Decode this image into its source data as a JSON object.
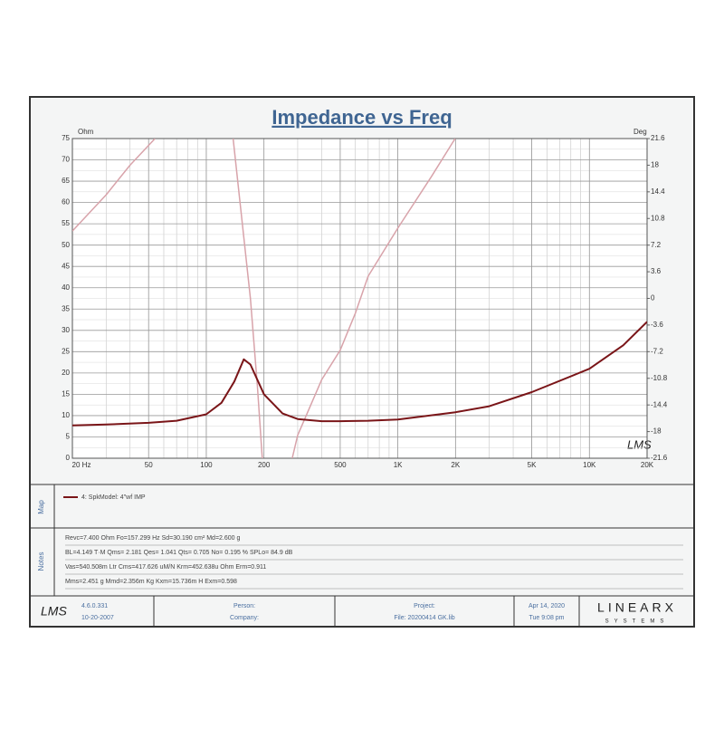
{
  "chart_data": {
    "type": "line",
    "title": "Impedance vs Freq",
    "y_label": "Ohm",
    "y2_label": "Deg",
    "log_x": true,
    "grid": true,
    "xlim": [
      20,
      20000
    ],
    "xticks": [
      {
        "value": 20,
        "label": "20  Hz"
      },
      50,
      100,
      200,
      500,
      {
        "value": 1000,
        "label": "1K"
      },
      {
        "value": 2000,
        "label": "2K"
      },
      {
        "value": 5000,
        "label": "5K"
      },
      {
        "value": 10000,
        "label": "10K"
      },
      {
        "value": 20000,
        "label": "20K"
      }
    ],
    "ylim": [
      0,
      75
    ],
    "yticks": [
      0,
      5,
      10,
      15,
      20,
      25,
      30,
      35,
      40,
      45,
      50,
      55,
      60,
      65,
      70,
      75
    ],
    "y2lim": [
      -21.6,
      21.6
    ],
    "y2ticks": [
      -21.6,
      -18,
      -14.4,
      -10.8,
      -7.2,
      -3.6,
      0,
      3.6,
      7.2,
      10.8,
      14.4,
      18,
      21.6
    ],
    "series": [
      {
        "name": "4: SpkModel: 4\"wf IMP",
        "color": "#7a1518",
        "x": [
          20,
          30,
          50,
          70,
          100,
          120,
          140,
          157,
          170,
          200,
          250,
          300,
          400,
          500,
          700,
          1000,
          2000,
          3000,
          5000,
          10000,
          15000,
          20000
        ],
        "values": [
          7.7,
          7.9,
          8.3,
          8.8,
          10.3,
          13,
          18,
          23.2,
          22,
          15,
          10.5,
          9.2,
          8.7,
          8.7,
          8.8,
          9.1,
          10.8,
          12.2,
          15.5,
          21,
          26.5,
          32
        ]
      },
      {
        "axis": "y2",
        "color": "#d8a3aa",
        "x": [
          20,
          30,
          40,
          54,
          100,
          138,
          150,
          170,
          185,
          196,
          230,
          281,
          300,
          400,
          500,
          600,
          700,
          1000,
          1500,
          1990
        ],
        "values": [
          9.1,
          14,
          18,
          21.6,
          null,
          21.6,
          13,
          0,
          -12,
          -21.6,
          null,
          -21.6,
          -18.5,
          -11,
          -7,
          -2,
          3,
          9.5,
          16.5,
          21.6
        ]
      }
    ],
    "watermark": "LMS"
  },
  "map_label": "Map",
  "notes_label": "Notes",
  "notes": [
    "Revc=7.400 Ohm  Fo=157.299 Hz  Sd=30.190 cm²  Md=2.600 g",
    "BL=4.149 T·M  Qms= 2.181  Qes= 1.041  Qts= 0.705  No= 0.195 %  SPLo= 84.9 dB",
    "Vas=540.508m Ltr  Cms=417.626 uM/N  Krm=452.638u Ohm  Erm=0.911",
    "Mms=2.451 g  Mmd=2.356m Kg  Kxm=15.736m H  Exm=0.598"
  ],
  "footer": {
    "logo": "LMS",
    "version": "4.6.0.331",
    "build": "10-20-2007",
    "person": "Person:",
    "company": "Company:",
    "project": "Project:",
    "file": "File: 20200414 GK.lib",
    "date": "Apr 14, 2020",
    "time": "Tue  9:08 pm",
    "brand": "LINEARX",
    "brand_sub": "SYSTEMS"
  }
}
